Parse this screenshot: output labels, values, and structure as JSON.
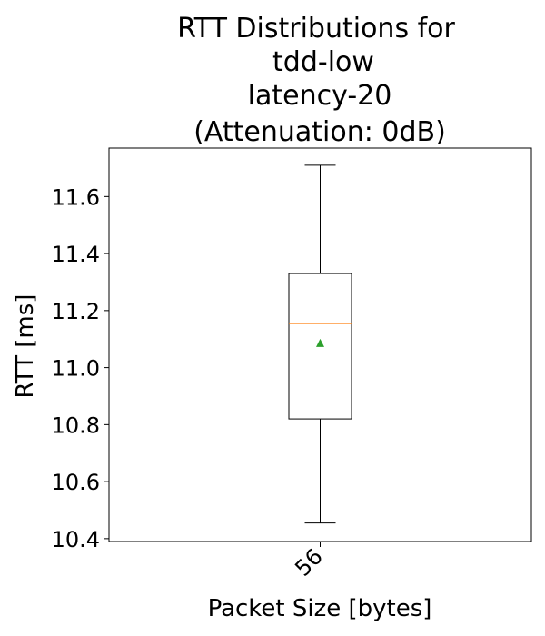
{
  "chart_data": {
    "type": "box",
    "title_lines": [
      "RTT Distributions for",
      "tdd-low",
      "latency-20",
      "(Attenuation: 0dB)"
    ],
    "xlabel": "Packet Size [bytes]",
    "ylabel": "RTT [ms]",
    "ylim": [
      10.39,
      11.77
    ],
    "yticks": [
      10.4,
      10.6,
      10.8,
      11.0,
      11.2,
      11.4,
      11.6
    ],
    "categories": [
      "56"
    ],
    "boxes": [
      {
        "category": "56",
        "whisker_low": 10.455,
        "q1": 10.82,
        "median": 11.155,
        "q3": 11.33,
        "whisker_high": 11.71,
        "mean": 11.085
      }
    ],
    "grid": false,
    "colors": {
      "median": "#ff7f0e",
      "mean": "#2ca02c",
      "box": "#000000"
    }
  }
}
